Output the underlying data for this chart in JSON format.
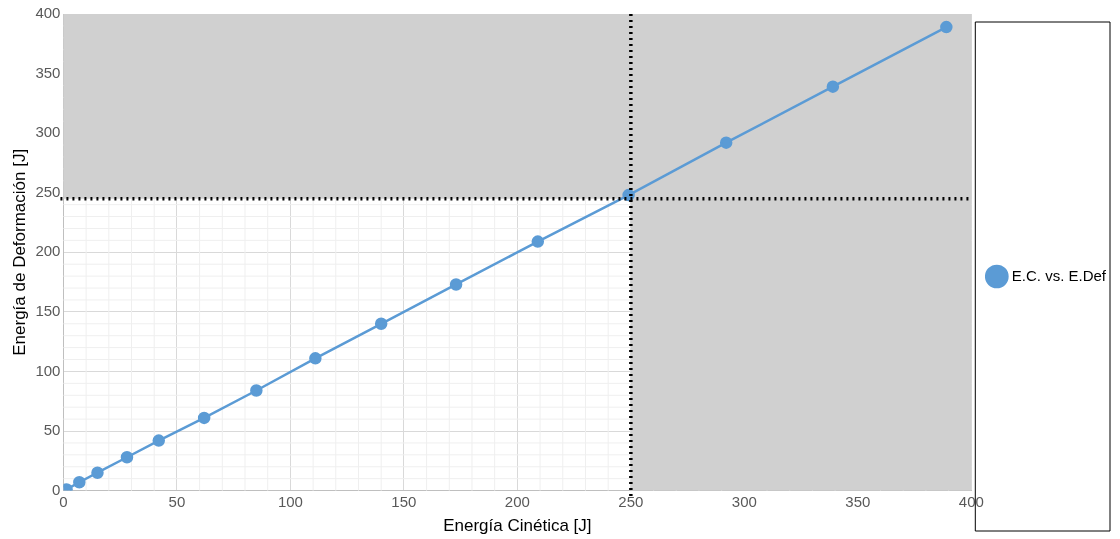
{
  "chart_data": {
    "type": "line",
    "xlabel": "Energía Cinética [J]",
    "ylabel": "Energía de Deformación [J]",
    "xlim": [
      0,
      400
    ],
    "ylim": [
      0,
      400
    ],
    "xticks": [
      0,
      50,
      100,
      150,
      200,
      250,
      300,
      350,
      400
    ],
    "yticks": [
      0,
      50,
      100,
      150,
      200,
      250,
      300,
      350,
      400
    ],
    "grid": true,
    "legend": "right",
    "marker": "circle",
    "line_style": "solid",
    "series": [
      {
        "name": "E.C. vs. E.Def",
        "color": "#5b9bd5",
        "x": [
          1.4,
          7,
          15,
          28,
          42,
          62,
          85,
          111,
          140,
          173,
          209,
          249,
          292,
          339,
          389
        ],
        "values": [
          1,
          7,
          15,
          28,
          42,
          61,
          84,
          111,
          140,
          173,
          209,
          248,
          292,
          339,
          389
        ]
      }
    ],
    "bands": [
      {
        "axis": "x",
        "from": 250,
        "to": 400,
        "color": "#d0d0d0"
      },
      {
        "axis": "y",
        "from": 245,
        "to": 400,
        "color": "#d0d0d0"
      }
    ],
    "ref_lines": [
      {
        "axis": "x",
        "value": 250,
        "color": "#000000",
        "line_style": "dotted"
      },
      {
        "axis": "y",
        "value": 245,
        "color": "#000000",
        "line_style": "dotted"
      }
    ]
  }
}
